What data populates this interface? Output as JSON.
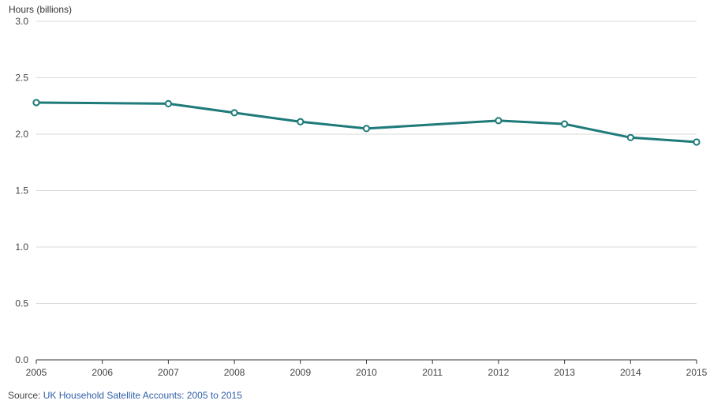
{
  "chart_data": {
    "type": "line",
    "ylabel": "Hours (billions)",
    "x": [
      2005,
      2007,
      2008,
      2009,
      2010,
      2012,
      2013,
      2014,
      2015
    ],
    "x_ticks": [
      "2005",
      "2006",
      "2007",
      "2008",
      "2009",
      "2010",
      "2011",
      "2012",
      "2013",
      "2014",
      "2015"
    ],
    "xlim": [
      2005,
      2015
    ],
    "y_ticks": [
      "0.0",
      "0.5",
      "1.0",
      "1.5",
      "2.0",
      "2.5",
      "3.0"
    ],
    "ylim": [
      0,
      3
    ],
    "series": [
      {
        "values": [
          2.28,
          2.27,
          2.19,
          2.11,
          2.05,
          2.12,
          2.09,
          1.97,
          1.93
        ]
      }
    ],
    "grid": true,
    "colors": {
      "line": "#1f7a7a",
      "marker_fill": "#ffffff",
      "grid": "#d9d9d9"
    }
  },
  "source": {
    "prefix": "Source: ",
    "link_text": "UK Household Satellite Accounts: 2005 to 2015"
  }
}
